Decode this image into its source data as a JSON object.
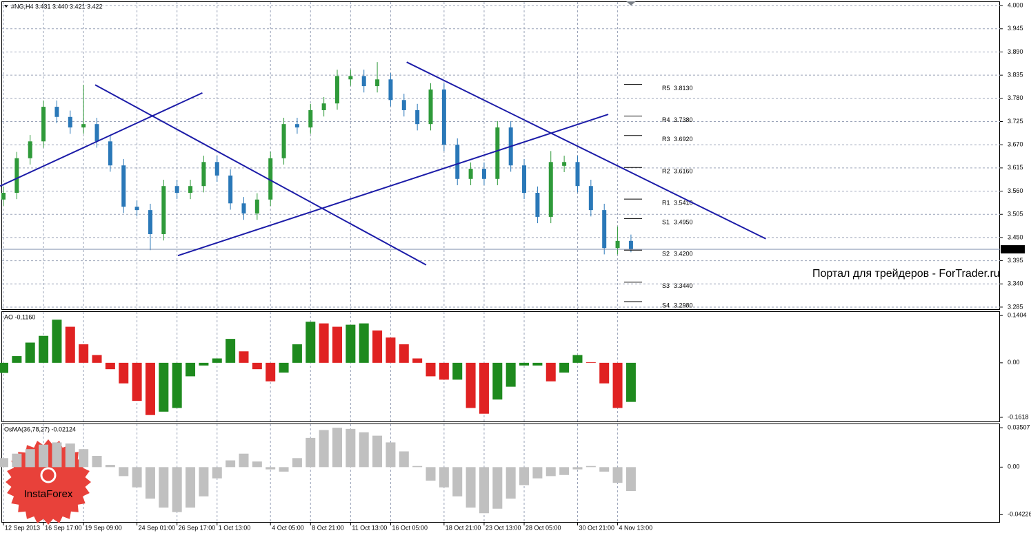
{
  "chart_data": [
    {
      "type": "candlestick",
      "header": "#NG,H4  3.431 3.440 3.421 3.422",
      "categories": [
        "12 Sep 2013",
        null,
        null,
        "16 Sep 17:00",
        null,
        null,
        "19 Sep 09:00",
        null,
        null,
        null,
        "24 Sep 01:00",
        null,
        null,
        "26 Sep 17:00",
        null,
        null,
        "1 Oct 13:00",
        null,
        null,
        null,
        "4 Oct 05:00",
        null,
        null,
        "8 Oct 21:00",
        null,
        null,
        "11 Oct 13:00",
        null,
        null,
        "16 Oct 05:00",
        null,
        null,
        null,
        "18 Oct 21:00",
        null,
        null,
        "23 Oct 13:00",
        null,
        null,
        "28 Oct 05:00",
        null,
        null,
        null,
        "30 Oct 21:00",
        null,
        null,
        "4 Nov 13:00",
        null
      ],
      "open": [
        3.54,
        3.556,
        3.638,
        3.678,
        3.76,
        3.736,
        3.711,
        3.719,
        3.678,
        3.621,
        3.523,
        3.515,
        3.458,
        3.572,
        3.556,
        3.572,
        3.629,
        3.597,
        3.531,
        3.507,
        3.54,
        3.638,
        3.719,
        3.711,
        3.752,
        3.768,
        3.825,
        3.833,
        3.809,
        3.825,
        3.776,
        3.752,
        3.719,
        3.801,
        3.67,
        3.589,
        3.613,
        3.589,
        3.711,
        3.621,
        3.556,
        3.499,
        3.62,
        3.629,
        3.572,
        3.515,
        3.425,
        3.442
      ],
      "high": [
        3.571,
        3.653,
        3.693,
        3.775,
        3.775,
        3.751,
        3.812,
        3.734,
        3.693,
        3.636,
        3.538,
        3.53,
        3.587,
        3.587,
        3.587,
        3.644,
        3.644,
        3.612,
        3.546,
        3.555,
        3.653,
        3.734,
        3.734,
        3.767,
        3.783,
        3.848,
        3.848,
        3.848,
        3.866,
        3.84,
        3.791,
        3.767,
        3.816,
        3.816,
        3.685,
        3.628,
        3.628,
        3.726,
        3.726,
        3.636,
        3.571,
        3.655,
        3.644,
        3.644,
        3.587,
        3.53,
        3.476,
        3.457
      ],
      "low": [
        3.525,
        3.541,
        3.623,
        3.663,
        3.721,
        3.696,
        3.696,
        3.663,
        3.606,
        3.508,
        3.5,
        3.42,
        3.443,
        3.541,
        3.541,
        3.557,
        3.582,
        3.516,
        3.492,
        3.492,
        3.525,
        3.623,
        3.696,
        3.696,
        3.737,
        3.753,
        3.81,
        3.794,
        3.794,
        3.761,
        3.737,
        3.704,
        3.704,
        3.655,
        3.574,
        3.574,
        3.574,
        3.574,
        3.606,
        3.541,
        3.484,
        3.484,
        3.605,
        3.557,
        3.5,
        3.41,
        3.41,
        3.415
      ],
      "close": [
        3.556,
        3.638,
        3.678,
        3.76,
        3.736,
        3.711,
        3.719,
        3.678,
        3.621,
        3.523,
        3.515,
        3.458,
        3.572,
        3.556,
        3.572,
        3.629,
        3.597,
        3.531,
        3.507,
        3.54,
        3.638,
        3.719,
        3.711,
        3.752,
        3.768,
        3.833,
        3.833,
        3.809,
        3.825,
        3.776,
        3.752,
        3.719,
        3.801,
        3.67,
        3.589,
        3.613,
        3.589,
        3.711,
        3.621,
        3.556,
        3.499,
        3.629,
        3.629,
        3.572,
        3.515,
        3.425,
        3.442,
        3.422
      ],
      "up_color": "#2f9a3a",
      "down_color": "#2a78b8",
      "ylim": [
        3.28,
        4.01
      ],
      "yticks": [
        {
          "value": 4.0,
          "label": "4.000"
        },
        3.945,
        {
          "value": 3.89,
          "label": "3.890"
        },
        3.835,
        {
          "value": 3.78,
          "label": "3.780"
        },
        3.725,
        {
          "value": 3.67,
          "label": "3.670"
        },
        3.615,
        {
          "value": 3.56,
          "label": "3.560"
        },
        3.505,
        {
          "value": 3.45,
          "label": "3.450"
        },
        3.395,
        {
          "value": 3.34,
          "label": "3.340"
        },
        3.285
      ],
      "grid": true,
      "last_price": 3.422,
      "pivots": [
        {
          "name": "R5",
          "value": 3.813,
          "label": "3.8130"
        },
        {
          "name": "R4",
          "value": 3.738,
          "label": "3.7380"
        },
        {
          "name": "R3",
          "value": 3.692,
          "label": "3.6920"
        },
        {
          "name": "R2",
          "value": 3.616,
          "label": "3.6160"
        },
        {
          "name": "R1",
          "value": 3.541,
          "label": "3.5410"
        },
        {
          "name": "S1",
          "value": 3.495,
          "label": "3.4950"
        },
        {
          "name": "S2",
          "value": 3.42,
          "label": "3.4200"
        },
        {
          "name": "S3",
          "value": 3.344,
          "label": "3.3440"
        },
        {
          "name": "S4",
          "value": 3.298,
          "label": "3.2980"
        }
      ],
      "trendlines": [
        {
          "x": [
            -0.25,
            14.9
          ],
          "y": [
            3.572,
            3.793
          ]
        },
        {
          "x": [
            6.87,
            31.66
          ],
          "y": [
            3.812,
            3.385
          ]
        },
        {
          "x": [
            13.07,
            45.3
          ],
          "y": [
            3.407,
            3.742
          ]
        },
        {
          "x": [
            30.2,
            57.1
          ],
          "y": [
            3.866,
            3.447
          ]
        }
      ],
      "trendline_color": "#1c1ca8",
      "watermark": "Портал для трейдеров - ForTrader.ru",
      "logo": "InstaForex"
    },
    {
      "type": "bar",
      "title": "AO -0,1160",
      "values": [
        -0.03,
        0.02,
        0.06,
        0.08,
        0.128,
        0.107,
        0.055,
        0.023,
        -0.019,
        -0.061,
        -0.113,
        -0.155,
        -0.145,
        -0.134,
        -0.04,
        -0.008,
        0.013,
        0.071,
        0.034,
        -0.019,
        -0.055,
        -0.029,
        0.055,
        0.122,
        0.117,
        0.107,
        0.113,
        0.117,
        0.096,
        0.075,
        0.055,
        0.013,
        -0.04,
        -0.05,
        -0.05,
        -0.134,
        -0.151,
        -0.109,
        -0.071,
        -0.008,
        -0.008,
        -0.055,
        -0.029,
        0.023,
        0.002,
        -0.061,
        -0.134,
        -0.116
      ],
      "up_color": "#1e8a1e",
      "down_color": "#e02222",
      "ylim": [
        -0.174,
        0.153
      ],
      "yticks": [
        0.1404,
        {
          "value": 0,
          "label": "0.00"
        },
        -0.1618
      ]
    },
    {
      "type": "bar",
      "title": "OsMA(36,78,27) -0.02124",
      "values": [
        0.008,
        0.012,
        0.016,
        0.02,
        0.022,
        0.021,
        0.016,
        0.01,
        0.002,
        -0.008,
        -0.018,
        -0.028,
        -0.036,
        -0.04,
        -0.036,
        -0.026,
        -0.01,
        0.006,
        0.012,
        0.005,
        -0.002,
        -0.004,
        0.008,
        0.026,
        0.033,
        0.035,
        0.034,
        0.031,
        0.028,
        0.022,
        0.014,
        0.001,
        -0.012,
        -0.018,
        -0.026,
        -0.036,
        -0.041,
        -0.037,
        -0.028,
        -0.016,
        -0.01,
        -0.008,
        -0.007,
        -0.002,
        0.001,
        -0.004,
        -0.014,
        -0.02124
      ],
      "color": "#c0c0c0",
      "ylim": [
        -0.0488,
        0.0388
      ],
      "yticks": [
        0.03507,
        {
          "value": 0,
          "label": "0.00"
        },
        -0.04226
      ]
    }
  ]
}
